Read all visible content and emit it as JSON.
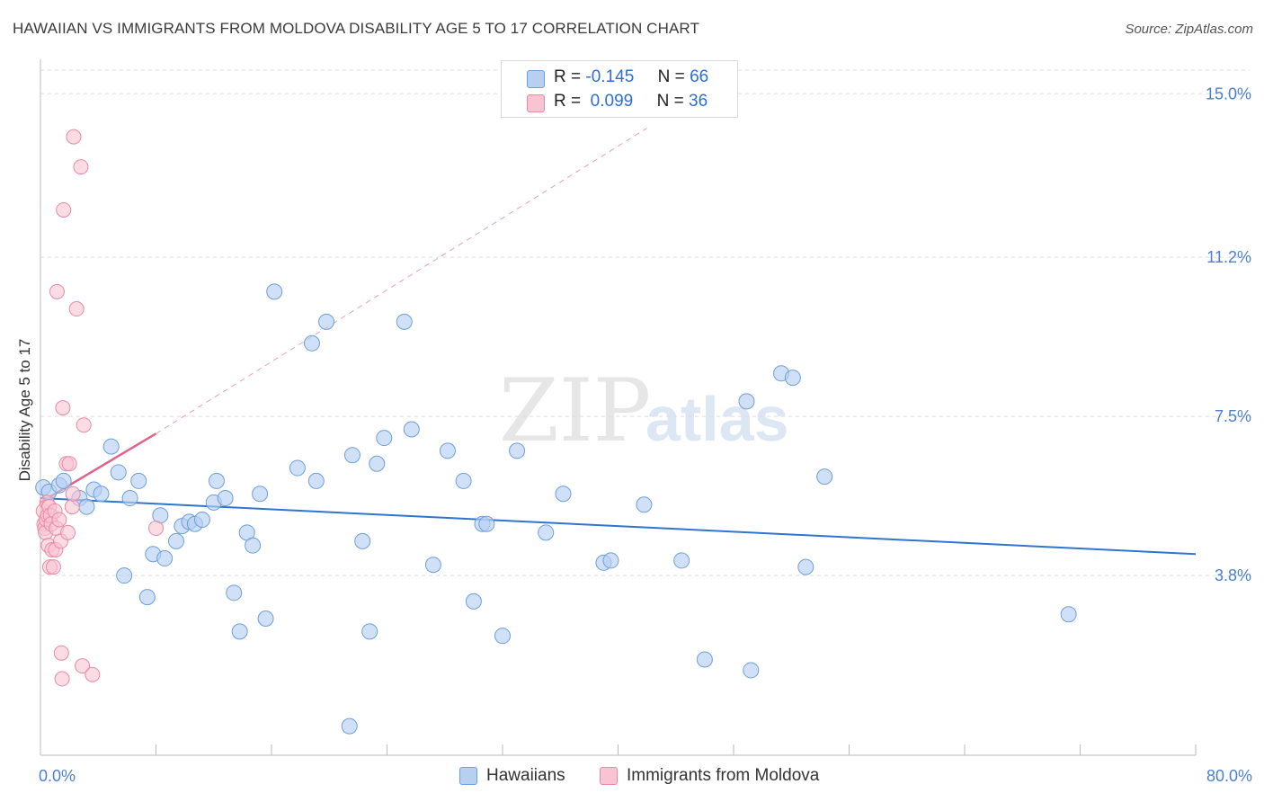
{
  "title": "HAWAIIAN VS IMMIGRANTS FROM MOLDOVA DISABILITY AGE 5 TO 17 CORRELATION CHART",
  "source": "Source: ZipAtlas.com",
  "watermark": {
    "zip": "ZIP",
    "atlas": "atlas"
  },
  "legend": {
    "hawaiians": {
      "r_label": "R =",
      "r_value": "-0.145",
      "n_label": "N =",
      "n_value": "66"
    },
    "moldova": {
      "r_label": "R =",
      "r_value": "0.099",
      "n_label": "N =",
      "n_value": "36"
    }
  },
  "bottom_legend": {
    "hawaiians": "Hawaiians",
    "moldova": "Immigrants from Moldova"
  },
  "colors": {
    "hawaiians_fill": "#b7d0f2",
    "hawaiians_stroke": "#6e9fdc",
    "hawaiians_line": "#2f74d0",
    "moldova_fill": "#f8c3d2",
    "moldova_stroke": "#e88aa6",
    "moldova_line": "#e0648a",
    "axis_text": "#4a7fd6",
    "grid": "#dddddd"
  },
  "chart_data": {
    "type": "scatter",
    "xlabel": "",
    "ylabel": "Disability Age 5 to 17",
    "xlim": [
      0,
      80
    ],
    "ylim": [
      0,
      15.8
    ],
    "x_ticks": [
      {
        "value": 0,
        "label": "0.0%"
      },
      {
        "value": 80,
        "label": "80.0%"
      }
    ],
    "y_ticks": [
      {
        "value": 3.8,
        "label": "3.8%"
      },
      {
        "value": 7.5,
        "label": "7.5%"
      },
      {
        "value": 11.2,
        "label": "11.2%"
      },
      {
        "value": 15.0,
        "label": "15.0%"
      }
    ],
    "grid": "horizontal-dashed",
    "legend_position": "top-center",
    "series": [
      {
        "name": "Hawaiians",
        "trend": {
          "x": [
            0,
            80
          ],
          "y": [
            5.6,
            4.3
          ]
        },
        "points": [
          [
            0.2,
            5.85
          ],
          [
            0.6,
            5.75
          ],
          [
            1.3,
            5.9
          ],
          [
            1.6,
            6.0
          ],
          [
            2.7,
            5.6
          ],
          [
            3.2,
            5.4
          ],
          [
            3.7,
            5.8
          ],
          [
            4.2,
            5.7
          ],
          [
            4.9,
            6.8
          ],
          [
            5.4,
            6.2
          ],
          [
            5.8,
            3.8
          ],
          [
            6.2,
            5.6
          ],
          [
            6.8,
            6.0
          ],
          [
            7.4,
            3.3
          ],
          [
            7.8,
            4.3
          ],
          [
            8.3,
            5.2
          ],
          [
            8.6,
            4.2
          ],
          [
            9.4,
            4.6
          ],
          [
            9.8,
            4.95
          ],
          [
            10.3,
            5.05
          ],
          [
            10.7,
            5.0
          ],
          [
            11.2,
            5.1
          ],
          [
            12.0,
            5.5
          ],
          [
            12.2,
            6.0
          ],
          [
            12.8,
            5.6
          ],
          [
            13.4,
            3.4
          ],
          [
            13.8,
            2.5
          ],
          [
            14.3,
            4.8
          ],
          [
            14.7,
            4.5
          ],
          [
            15.2,
            5.7
          ],
          [
            15.6,
            2.8
          ],
          [
            16.2,
            10.4
          ],
          [
            17.8,
            6.3
          ],
          [
            18.8,
            9.2
          ],
          [
            19.1,
            6.0
          ],
          [
            19.8,
            9.7
          ],
          [
            21.4,
            0.3
          ],
          [
            21.6,
            6.6
          ],
          [
            22.3,
            4.6
          ],
          [
            22.8,
            2.5
          ],
          [
            23.3,
            6.4
          ],
          [
            23.8,
            7.0
          ],
          [
            25.2,
            9.7
          ],
          [
            25.7,
            7.2
          ],
          [
            27.2,
            4.05
          ],
          [
            28.2,
            6.7
          ],
          [
            29.3,
            6.0
          ],
          [
            30.0,
            3.2
          ],
          [
            30.6,
            5.0
          ],
          [
            30.9,
            5.0
          ],
          [
            32.0,
            2.4
          ],
          [
            33.0,
            6.7
          ],
          [
            35.0,
            4.8
          ],
          [
            36.2,
            5.7
          ],
          [
            39.0,
            4.1
          ],
          [
            39.5,
            4.15
          ],
          [
            41.8,
            5.45
          ],
          [
            44.4,
            4.15
          ],
          [
            46.0,
            1.85
          ],
          [
            48.9,
            7.85
          ],
          [
            49.2,
            1.6
          ],
          [
            51.3,
            8.5
          ],
          [
            52.1,
            8.4
          ],
          [
            53.0,
            4.0
          ],
          [
            54.3,
            6.1
          ],
          [
            71.2,
            2.9
          ]
        ]
      },
      {
        "name": "Immigrants from Moldova",
        "trend": {
          "x": [
            0,
            8
          ],
          "y": [
            5.5,
            7.1
          ],
          "extended": {
            "x": [
              8,
              42
            ],
            "y": [
              7.1,
              14.2
            ]
          }
        },
        "points": [
          [
            0.2,
            5.3
          ],
          [
            0.25,
            5.0
          ],
          [
            0.3,
            4.9
          ],
          [
            0.35,
            4.8
          ],
          [
            0.4,
            5.1
          ],
          [
            0.45,
            5.5
          ],
          [
            0.5,
            5.2
          ],
          [
            0.55,
            4.5
          ],
          [
            0.6,
            5.4
          ],
          [
            0.65,
            4.0
          ],
          [
            0.7,
            5.2
          ],
          [
            0.75,
            5.0
          ],
          [
            0.8,
            4.4
          ],
          [
            0.9,
            4.0
          ],
          [
            1.0,
            5.3
          ],
          [
            1.05,
            4.4
          ],
          [
            1.1,
            4.9
          ],
          [
            1.15,
            10.4
          ],
          [
            1.3,
            5.1
          ],
          [
            1.4,
            4.6
          ],
          [
            1.45,
            2.0
          ],
          [
            1.5,
            1.4
          ],
          [
            1.55,
            7.7
          ],
          [
            1.6,
            12.3
          ],
          [
            1.8,
            6.4
          ],
          [
            1.9,
            4.8
          ],
          [
            2.0,
            6.4
          ],
          [
            2.2,
            5.4
          ],
          [
            2.25,
            5.7
          ],
          [
            2.3,
            14.0
          ],
          [
            2.5,
            10.0
          ],
          [
            2.8,
            13.3
          ],
          [
            2.9,
            1.7
          ],
          [
            3.0,
            7.3
          ],
          [
            3.6,
            1.5
          ],
          [
            8.0,
            4.9
          ]
        ]
      }
    ]
  }
}
